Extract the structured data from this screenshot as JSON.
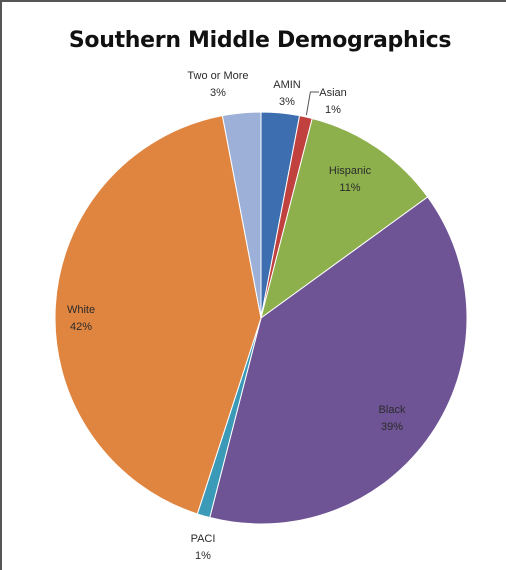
{
  "chart_data": {
    "type": "pie",
    "title": "Southern Middle Demographics",
    "slices": [
      {
        "label": "AMIN",
        "value": 3,
        "display": "3%",
        "color": "#3d6fb0"
      },
      {
        "label": "Asian",
        "value": 1,
        "display": "1%",
        "color": "#c0413e"
      },
      {
        "label": "Hispanic",
        "value": 11,
        "display": "11%",
        "color": "#8db04d"
      },
      {
        "label": "Black",
        "value": 39,
        "display": "39%",
        "color": "#6e5495"
      },
      {
        "label": "PACI",
        "value": 1,
        "display": "1%",
        "color": "#3a9ab8"
      },
      {
        "label": "White",
        "value": 42,
        "display": "42%",
        "color": "#e08540"
      },
      {
        "label": "Two or More",
        "value": 3,
        "display": "3%",
        "color": "#9db1d8"
      }
    ],
    "legend": "none"
  }
}
